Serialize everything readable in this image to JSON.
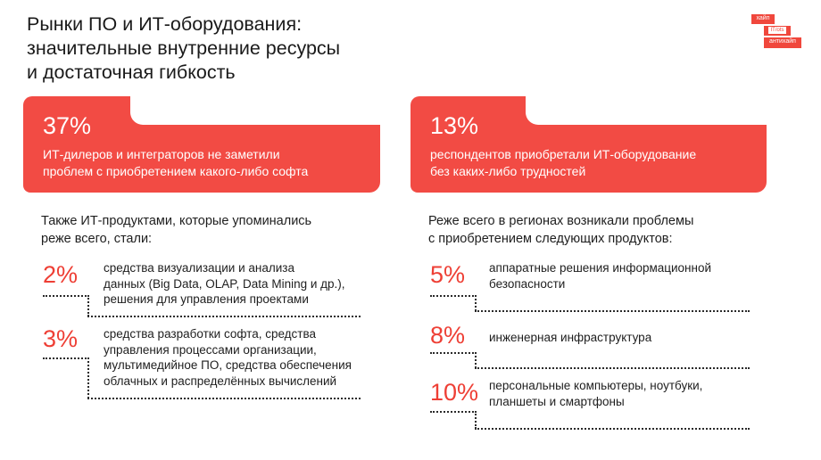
{
  "title": {
    "lines": [
      "Рынки ПО и ИТ-оборудования:",
      "значительные внутренние ресурсы",
      "и достаточная гибкость"
    ]
  },
  "logo": {
    "top": "хайп",
    "middle": "IT/ots",
    "bottom": "антихайп"
  },
  "cards": {
    "left": {
      "value": "37%",
      "lines": [
        "ИТ-дилеров и интеграторов не заметили",
        "проблем с приобретением какого-либо софта"
      ]
    },
    "right": {
      "value": "13%",
      "lines": [
        "респондентов приобретали ИТ-оборудование",
        "без каких-либо трудностей"
      ]
    }
  },
  "left": {
    "intro": [
      "Также ИТ-продуктами, которые упоминались",
      "реже всего, стали:"
    ],
    "items": [
      {
        "value": "2%",
        "lines": [
          "средства визуализации и анализа",
          "данных (Big Data, OLAP, Data Mining и др.),",
          "решения для управления проектами"
        ]
      },
      {
        "value": "3%",
        "lines": [
          "средства разработки софта, средства",
          "управления процессами организации,",
          "мультимедийное ПО, средства обеспечения",
          "облачных и распределённых вычислений"
        ]
      }
    ]
  },
  "right": {
    "intro": [
      "Реже всего в регионах возникали проблемы",
      "с приобретением следующих продуктов:"
    ],
    "items": [
      {
        "value": "5%",
        "lines": [
          "аппаратные решения информационной",
          "безопасности"
        ]
      },
      {
        "value": "8%",
        "lines": [
          "инженерная инфраструктура"
        ]
      },
      {
        "value": "10%",
        "lines": [
          "персональные компьютеры, ноутбуки,",
          "планшеты и смартфоны"
        ]
      }
    ]
  }
}
